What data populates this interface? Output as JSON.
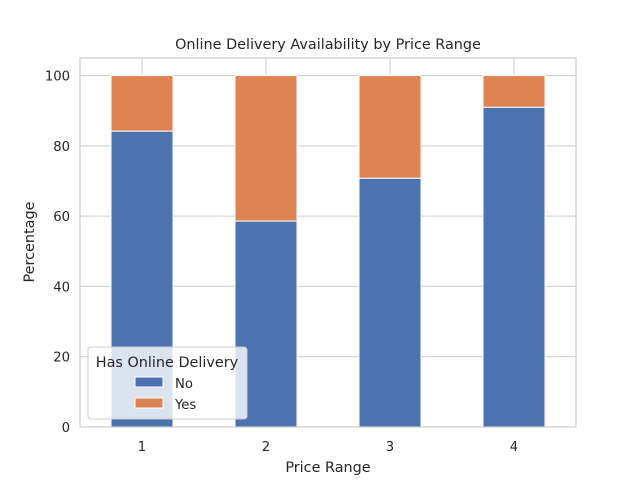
{
  "chart_data": {
    "type": "bar",
    "stacked": true,
    "title": "Online Delivery Availability by Price Range",
    "xlabel": "Price Range",
    "ylabel": "Percentage",
    "categories": [
      "1",
      "2",
      "3",
      "4"
    ],
    "series": [
      {
        "name": "No",
        "values": [
          84.2,
          58.6,
          70.8,
          91.0
        ],
        "color": "#4c72b0"
      },
      {
        "name": "Yes",
        "values": [
          15.8,
          41.4,
          29.2,
          9.0
        ],
        "color": "#dd8452"
      }
    ],
    "ylim": [
      0,
      105
    ],
    "yticks": [
      0,
      20,
      40,
      60,
      80,
      100
    ],
    "grid": true,
    "legend": {
      "title": "Has Online Delivery",
      "position": "lower-left"
    }
  }
}
